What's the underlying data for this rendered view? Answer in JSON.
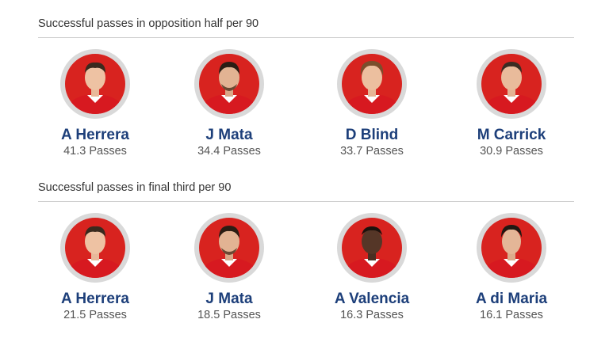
{
  "sections": [
    {
      "title": "Successful passes in opposition half per 90",
      "players": [
        {
          "name": "A Herrera",
          "stat": "41.3 Passes",
          "icon": "player-portrait-icon"
        },
        {
          "name": "J Mata",
          "stat": "34.4 Passes",
          "icon": "player-portrait-icon"
        },
        {
          "name": "D Blind",
          "stat": "33.7 Passes",
          "icon": "player-portrait-icon"
        },
        {
          "name": "M Carrick",
          "stat": "30.9 Passes",
          "icon": "player-portrait-icon"
        }
      ]
    },
    {
      "title": "Successful passes in final third per 90",
      "players": [
        {
          "name": "A Herrera",
          "stat": "21.5 Passes",
          "icon": "player-portrait-icon"
        },
        {
          "name": "J Mata",
          "stat": "18.5 Passes",
          "icon": "player-portrait-icon"
        },
        {
          "name": "A Valencia",
          "stat": "16.3 Passes",
          "icon": "player-portrait-icon"
        },
        {
          "name": "A di Maria",
          "stat": "16.1 Passes",
          "icon": "player-portrait-icon"
        }
      ]
    }
  ],
  "colors": {
    "name_text": "#1d3f7a",
    "stat_text": "#555555",
    "portrait_ring": "#d9d9d9",
    "portrait_background": "#d8231f",
    "shirt": "#d71920"
  }
}
